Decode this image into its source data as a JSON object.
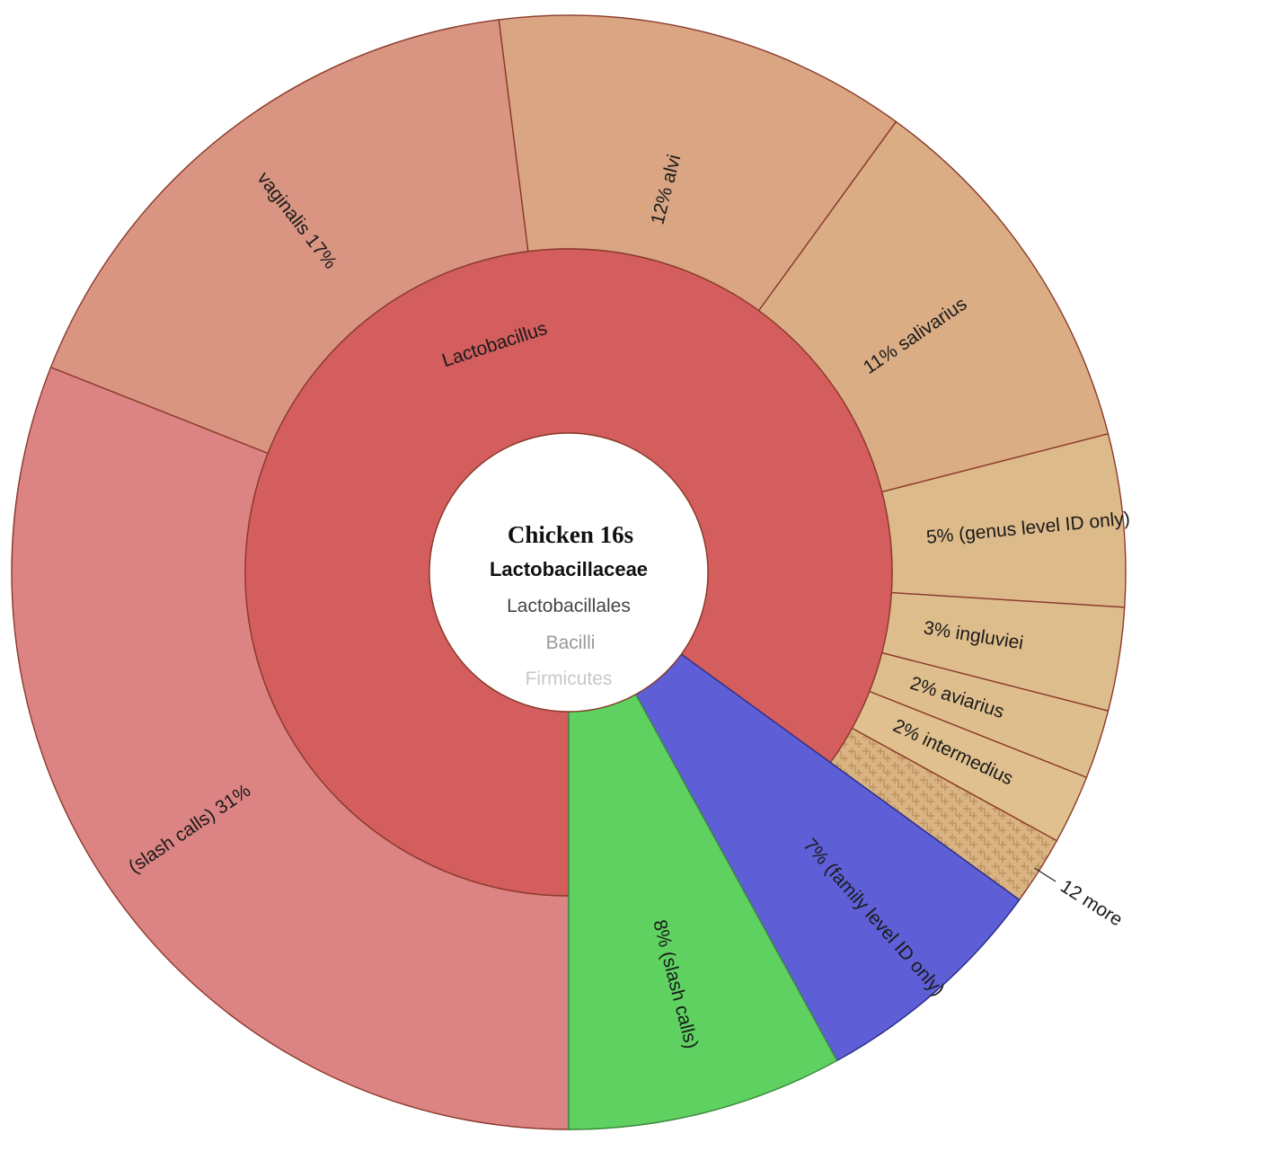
{
  "chart_data": {
    "type": "sunburst",
    "center": {
      "title": "Chicken 16s",
      "lineage": [
        "Lactobacillaceae",
        "Lactobacillales",
        "Bacilli",
        "Firmicutes"
      ]
    },
    "inner_ring": [
      {
        "name": "Lactobacillus",
        "percent": 85,
        "color": "#d45d5d"
      },
      {
        "name": "",
        "percent": 7,
        "color": "#5e5fd6"
      },
      {
        "name": "",
        "percent": 8,
        "color": "#5ed160"
      }
    ],
    "outer_ring": [
      {
        "name": "(slash calls)",
        "percent_label": "31%",
        "percent": 31,
        "color": "#dc8383",
        "label_order": "name-first"
      },
      {
        "name": "vaginalis",
        "percent_label": "17%",
        "percent": 17,
        "color": "#d99582",
        "label_order": "name-first"
      },
      {
        "name": "alvi",
        "percent_label": "12%",
        "percent": 12,
        "color": "#d9a583",
        "label_order": "pct-first"
      },
      {
        "name": "salivarius",
        "percent_label": "11%",
        "percent": 11,
        "color": "#dbad85",
        "label_order": "pct-first"
      },
      {
        "name": "(genus level ID only)",
        "percent_label": "5%",
        "percent": 5,
        "color": "#ddba8a",
        "label_order": "pct-first"
      },
      {
        "name": "ingluviei",
        "percent_label": "3%",
        "percent": 3,
        "color": "#debd8c",
        "label_order": "pct-first"
      },
      {
        "name": "aviarius",
        "percent_label": "2%",
        "percent": 2,
        "color": "#dfbe8e",
        "label_order": "pct-first"
      },
      {
        "name": "intermedius",
        "percent_label": "2%",
        "percent": 2,
        "color": "#e0c08f",
        "label_order": "pct-first"
      },
      {
        "name": "12 more",
        "percent_label": "",
        "percent": 2,
        "color": "#d9b382",
        "hatched": true,
        "label_order": "callout"
      },
      {
        "name": "(family level ID only)",
        "percent_label": "7%",
        "percent": 7,
        "color": "#5e5fd6",
        "label_order": "pct-first"
      },
      {
        "name": "(slash calls)",
        "percent_label": "8%",
        "percent": 8,
        "color": "#5ed160",
        "label_order": "pct-first"
      }
    ]
  }
}
